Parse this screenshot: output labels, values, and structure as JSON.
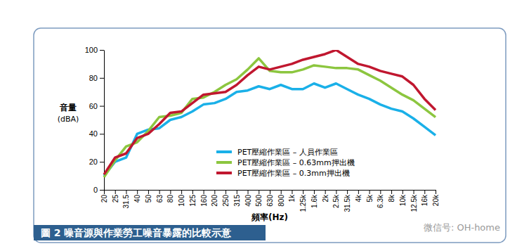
{
  "chart_data": {
    "type": "line",
    "title": "圖 2 噪音源與作業勞工噪音暴露的比較示意",
    "x_label": "頻率(Hz)",
    "y_label": "音量\n(dBA)",
    "annotations": [
      "微信号: OH-home"
    ],
    "categories": [
      "20",
      "25",
      "31.5",
      "40",
      "50",
      "63",
      "80",
      "100",
      "125",
      "160",
      "200",
      "250",
      "315",
      "400",
      "500",
      "630",
      "800",
      "1k",
      "1.25k",
      "1.6k",
      "2k",
      "2.5k",
      "31.5k",
      "4k",
      "5k",
      "6.3k",
      "8k",
      "10k",
      "12.5k",
      "16k",
      "20k"
    ],
    "ylim": [
      0,
      100
    ],
    "yticks": [
      0,
      20,
      40,
      60,
      80,
      100
    ],
    "grid": false,
    "legend": "center",
    "series": [
      {
        "name": "PET壓縮作業區 – 人員作業區",
        "color": "#1ab0e8",
        "values": [
          10,
          20,
          23,
          40,
          43,
          44,
          50,
          52,
          56,
          61,
          62,
          65,
          70,
          71,
          74,
          72,
          75,
          72,
          72,
          76,
          73,
          76,
          72,
          68,
          65,
          61,
          58,
          56,
          51,
          45,
          39
        ]
      },
      {
        "name": "PET壓縮作業區 – 0.63mm押出機",
        "color": "#8cc63f",
        "values": [
          9,
          21,
          31,
          34,
          42,
          52,
          53,
          55,
          65,
          66,
          70,
          75,
          79,
          86,
          94,
          85,
          84,
          84,
          86,
          89,
          88,
          87,
          87,
          86,
          82,
          78,
          73,
          68,
          64,
          58,
          52
        ]
      },
      {
        "name": "PET壓縮作業區 – 0.3mm押出機",
        "color": "#c0172f",
        "values": [
          11,
          23,
          26,
          37,
          40,
          47,
          55,
          56,
          62,
          68,
          69,
          70,
          75,
          82,
          88,
          86,
          88,
          90,
          93,
          95,
          97,
          100,
          95,
          90,
          88,
          85,
          83,
          81,
          75,
          65,
          57
        ]
      }
    ]
  }
}
